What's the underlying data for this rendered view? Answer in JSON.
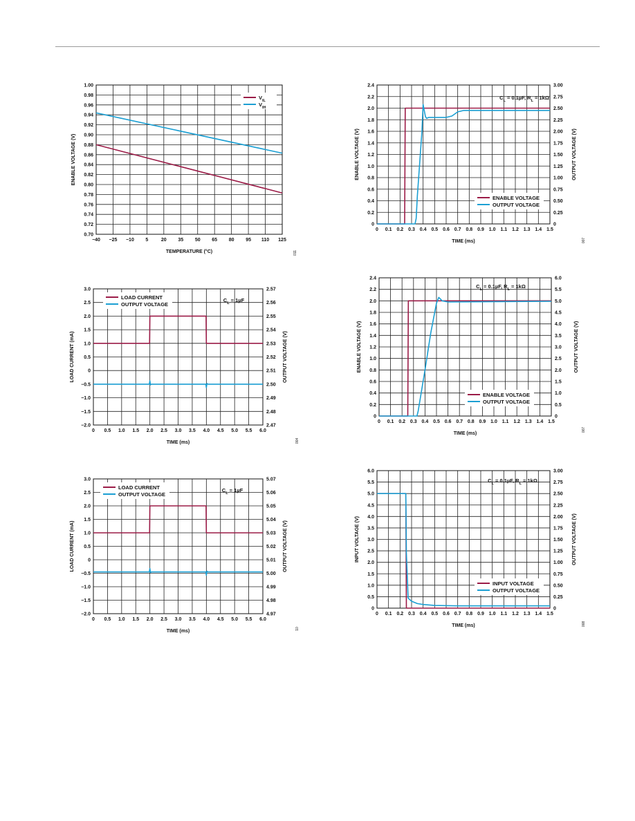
{
  "colors": {
    "maroon": "#9b1b47",
    "cyan": "#1b9fd3"
  },
  "chart_data": [
    {
      "type": "line",
      "x": [
        -40,
        125
      ],
      "xticks": [
        "−40",
        "−25",
        "−10",
        "5",
        "20",
        "35",
        "50",
        "65",
        "80",
        "95",
        "110",
        "125"
      ],
      "yticks": [
        "0.70",
        "0.72",
        "0.74",
        "0.76",
        "0.78",
        "0.80",
        "0.82",
        "0.84",
        "0.86",
        "0.88",
        "0.90",
        "0.92",
        "0.94",
        "0.96",
        "0.98",
        "1.00"
      ],
      "xlim": [
        -40,
        125
      ],
      "ylim": [
        0.7,
        1.0
      ],
      "xlabel": "TEMPERATURE (°C)",
      "ylabel": "ENABLE VOLTAGE (V)",
      "series": [
        {
          "name": "VIL",
          "name_main": "V",
          "name_sub": "IL",
          "x": [
            -40,
            125
          ],
          "y": [
            0.88,
            0.783
          ]
        },
        {
          "name": "VIH",
          "name_main": "V",
          "name_sub": "IH",
          "x": [
            -40,
            125
          ],
          "y": [
            0.944,
            0.863
          ]
        }
      ],
      "annotation": "",
      "fig_id": "011",
      "legend": "top-right"
    },
    {
      "type": "line",
      "x": [
        0,
        1.5
      ],
      "xticks": [
        "0",
        "0.1",
        "0.2",
        "0.3",
        "0.4",
        "0.5",
        "0.6",
        "0.7",
        "0.8",
        "0.9",
        "1.0",
        "1.1",
        "1.2",
        "1.3",
        "1.4",
        "1.5"
      ],
      "yticks": [
        "0",
        "0.2",
        "0.4",
        "0.6",
        "0.8",
        "1.0",
        "1.2",
        "1.4",
        "1.6",
        "1.8",
        "2.0",
        "2.2",
        "2.4"
      ],
      "y2ticks": [
        "0",
        "0.25",
        "0.50",
        "0.75",
        "1.00",
        "1.25",
        "1.50",
        "1.75",
        "2.00",
        "2.25",
        "2.50",
        "2.75",
        "3.00"
      ],
      "xlim": [
        0,
        1.5
      ],
      "ylim": [
        0,
        2.4
      ],
      "y2lim": [
        0,
        3.0
      ],
      "xlabel": "TIME (ms)",
      "ylabel": "ENABLE VOLTAGE (V)",
      "y2label": "OUTPUT VOLTAGE (V)",
      "series": [
        {
          "name": "ENABLE VOLTAGE",
          "x": [
            0,
            0.24,
            0.245,
            1.5
          ],
          "y": [
            0,
            0,
            2.0,
            2.0
          ]
        },
        {
          "name": "OUTPUT VOLTAGE",
          "axis": "right",
          "x": [
            0,
            0.33,
            0.34,
            0.35,
            0.37,
            0.39,
            0.4,
            0.41,
            0.42,
            0.43,
            0.45,
            0.5,
            0.6,
            0.65,
            0.7,
            0.75,
            1.5
          ],
          "y": [
            0,
            0,
            0.12,
            0.6,
            1.3,
            2.0,
            2.58,
            2.45,
            2.32,
            2.28,
            2.3,
            2.3,
            2.3,
            2.33,
            2.42,
            2.45,
            2.45
          ]
        }
      ],
      "annotation": "CL = 0.1µF, RL = 1kΩ",
      "fig_id": "007",
      "legend": "bottom-right"
    },
    {
      "type": "line",
      "x": [
        0,
        6.0
      ],
      "xticks": [
        "0",
        "0.5",
        "1.0",
        "1.5",
        "2.0",
        "2.5",
        "3.0",
        "3.5",
        "4.0",
        "4.5",
        "5.0",
        "5.5",
        "6.0"
      ],
      "yticks": [
        "−2.0",
        "−1.5",
        "−1.0",
        "−0.5",
        "0",
        "0.5",
        "1.0",
        "1.5",
        "2.0",
        "2.5",
        "3.0"
      ],
      "y2ticks": [
        "2.47",
        "2.48",
        "2.49",
        "2.50",
        "2.51",
        "2.52",
        "2.53",
        "2.54",
        "2.55",
        "2.56",
        "2.57"
      ],
      "xlim": [
        0,
        6.0
      ],
      "ylim": [
        -2.0,
        3.0
      ],
      "y2lim": [
        2.47,
        2.57
      ],
      "xlabel": "TIME (ms)",
      "ylabel": "LOAD CURRENT (mA)",
      "y2label": "OUTPUT VOLTAGE (V)",
      "series": [
        {
          "name": "LOAD CURRENT",
          "x": [
            0,
            1.99,
            2.0,
            3.99,
            4.0,
            6.0
          ],
          "y": [
            1.0,
            1.0,
            2.0,
            2.0,
            1.0,
            1.0
          ]
        },
        {
          "name": "OUTPUT VOLTAGE",
          "axis": "right",
          "x": [
            0,
            1.98,
            2.0,
            2.02,
            2.05,
            3.98,
            4.0,
            4.02,
            4.05,
            6.0
          ],
          "y": [
            2.5,
            2.5,
            2.5025,
            2.4995,
            2.5,
            2.5,
            2.4975,
            2.5005,
            2.5,
            2.5
          ]
        }
      ],
      "annotation": "CL = 1µF",
      "fig_id": "004",
      "legend": "top-left"
    },
    {
      "type": "line",
      "x": [
        0,
        1.5
      ],
      "xticks": [
        "0",
        "0.1",
        "0.2",
        "0.3",
        "0.4",
        "0.5",
        "0.6",
        "0.7",
        "0.8",
        "0.9",
        "1.0",
        "1.1",
        "1.2",
        "1.3",
        "1.4",
        "1.5"
      ],
      "yticks": [
        "0",
        "0.2",
        "0.4",
        "0.6",
        "0.8",
        "1.0",
        "1.2",
        "1.4",
        "1.6",
        "1.8",
        "2.0",
        "2.2",
        "2.4"
      ],
      "y2ticks": [
        "0",
        "0.5",
        "1.0",
        "1.5",
        "2.0",
        "2.5",
        "3.0",
        "3.5",
        "4.0",
        "4.5",
        "5.0",
        "5.5",
        "6.0"
      ],
      "xlim": [
        0,
        1.5
      ],
      "ylim": [
        0,
        2.4
      ],
      "y2lim": [
        0,
        6.0
      ],
      "xlabel": "TIME (ms)",
      "ylabel": "ENABLE VOLTAGE (V)",
      "y2label": "OUTPUT VOLTAGE (V)",
      "series": [
        {
          "name": "ENABLE VOLTAGE",
          "x": [
            0,
            0.25,
            0.255,
            1.5
          ],
          "y": [
            0,
            0,
            2.0,
            2.0
          ]
        },
        {
          "name": "OUTPUT VOLTAGE",
          "axis": "right",
          "x": [
            0,
            0.33,
            0.34,
            0.4,
            0.45,
            0.5,
            0.52,
            0.55,
            0.6,
            1.5
          ],
          "y": [
            0,
            0,
            0.2,
            2.0,
            3.6,
            4.9,
            5.15,
            5.0,
            4.95,
            4.98
          ]
        }
      ],
      "annotation": "CL = 0.1µF, RL = 1kΩ",
      "fig_id": "007",
      "legend": "bottom-right"
    },
    {
      "type": "line",
      "x": [
        0,
        6.0
      ],
      "xticks": [
        "0",
        "0.5",
        "1.0",
        "1.5",
        "2.0",
        "2.5",
        "3.0",
        "3.5",
        "4.0",
        "4.5",
        "5.0",
        "5.5",
        "6.0"
      ],
      "yticks": [
        "−2.0",
        "−1.5",
        "−1.0",
        "−0.5",
        "0",
        "0.5",
        "1.0",
        "1.5",
        "2.0",
        "2.5",
        "3.0"
      ],
      "y2ticks": [
        "4.97",
        "4.98",
        "4.99",
        "5.00",
        "5.01",
        "5.02",
        "5.03",
        "5.04",
        "5.05",
        "5.06",
        "5.07"
      ],
      "xlim": [
        0,
        6.0
      ],
      "ylim": [
        -2.0,
        3.0
      ],
      "y2lim": [
        4.97,
        5.07
      ],
      "xlabel": "TIME (ms)",
      "ylabel": "LOAD CURRENT (mA)",
      "y2label": "OUTPUT VOLTAGE (V)",
      "series": [
        {
          "name": "LOAD CURRENT",
          "x": [
            0,
            1.99,
            2.0,
            3.99,
            4.0,
            6.0
          ],
          "y": [
            1.0,
            1.0,
            2.0,
            2.0,
            1.0,
            1.0
          ]
        },
        {
          "name": "OUTPUT VOLTAGE",
          "axis": "right",
          "x": [
            0,
            1.98,
            2.0,
            2.02,
            2.05,
            3.98,
            4.0,
            4.02,
            4.05,
            6.0
          ],
          "y": [
            5.001,
            5.001,
            5.0035,
            5.0005,
            5.001,
            5.001,
            4.9985,
            5.0015,
            5.001,
            5.001
          ]
        }
      ],
      "annotation": "CL = 1µF",
      "fig_id": "10",
      "legend": "top-left"
    },
    {
      "type": "line",
      "x": [
        0,
        1.5
      ],
      "xticks": [
        "0",
        "0.1",
        "0.2",
        "0.3",
        "0.4",
        "0.5",
        "0.6",
        "0.7",
        "0.8",
        "0.9",
        "1.0",
        "1.1",
        "1.2",
        "1.3",
        "1.4",
        "1.5"
      ],
      "yticks": [
        "0",
        "0.5",
        "1.0",
        "1.5",
        "2.0",
        "2.5",
        "3.0",
        "3.5",
        "4.0",
        "4.5",
        "5.0",
        "5.5",
        "6.0"
      ],
      "y2ticks": [
        "0",
        "0.25",
        "0.50",
        "0.75",
        "1.00",
        "1.25",
        "1.50",
        "1.75",
        "2.00",
        "2.25",
        "2.50",
        "2.75",
        "3.00"
      ],
      "xlim": [
        0,
        1.5
      ],
      "ylim": [
        0,
        6.0
      ],
      "y2lim": [
        0,
        3.0
      ],
      "xlabel": "TIME (ms)",
      "ylabel": "INPUT VOLTAGE (V)",
      "y2label": "OUTPUT VOLTAGE (V)",
      "series": [
        {
          "name": "INPUT VOLTAGE",
          "x": [
            0,
            0.25,
            0.255,
            1.5
          ],
          "y": [
            5.0,
            5.0,
            0,
            0
          ]
        },
        {
          "name": "OUTPUT VOLTAGE",
          "axis": "right",
          "x": [
            0,
            0.25,
            0.255,
            0.27,
            0.3,
            0.35,
            0.4,
            0.5,
            0.7,
            1.0,
            1.5
          ],
          "y": [
            2.5,
            2.5,
            1.2,
            0.22,
            0.15,
            0.1,
            0.08,
            0.06,
            0.05,
            0.05,
            0.05
          ]
        }
      ],
      "annotation": "CL = 0.1µF, RL = 1kΩ",
      "fig_id": "008",
      "legend": "bottom-right"
    }
  ]
}
